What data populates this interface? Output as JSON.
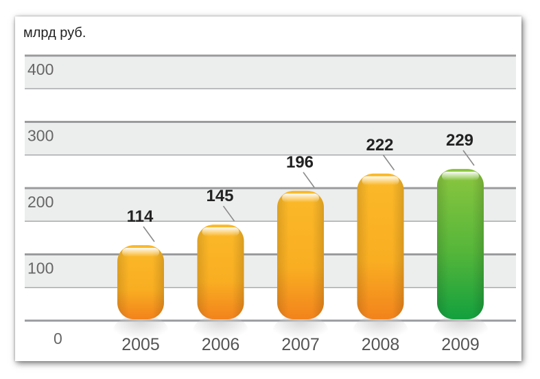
{
  "chart_data": {
    "type": "bar",
    "unit_label": "млрд руб.",
    "categories": [
      "2005",
      "2006",
      "2007",
      "2008",
      "2009"
    ],
    "values": [
      114,
      145,
      196,
      222,
      229
    ],
    "data_labels": [
      "114",
      "145",
      "196",
      "222",
      "229"
    ],
    "highlight_index": 4,
    "y_ticks": [
      0,
      100,
      200,
      300,
      400
    ],
    "y_tick_labels": [
      "0",
      "100",
      "200",
      "300",
      "400"
    ],
    "ylim": [
      0,
      400
    ],
    "grid": true,
    "colors": {
      "bar": "#f7a21e",
      "bar_highlight": "#3aaa35",
      "band": "#eceded",
      "grid_major": "#9a9b9d",
      "grid_minor": "#a9aaac"
    }
  }
}
